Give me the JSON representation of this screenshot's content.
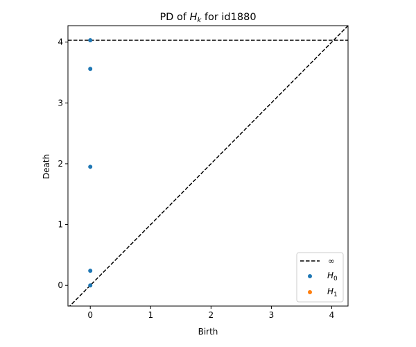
{
  "chart_data": {
    "type": "scatter",
    "title_prefix": "PD of ",
    "title_var": "H",
    "title_sub": "k",
    "title_suffix": " for id1880",
    "xlabel": "Birth",
    "ylabel": "Death",
    "xlim": [
      -0.37,
      4.27
    ],
    "ylim": [
      -0.34,
      4.27
    ],
    "xticks": [
      0,
      1,
      2,
      3,
      4
    ],
    "yticks": [
      0,
      1,
      2,
      3,
      4
    ],
    "grid": false,
    "legend_position": "lower-right",
    "infinity_level": 4.03,
    "diagonal": true,
    "legend": [
      {
        "label": "∞",
        "kind": "dashed-line",
        "color": "#000000"
      },
      {
        "label": "H",
        "sub": "0",
        "kind": "marker",
        "color": "#1f77b4"
      },
      {
        "label": "H",
        "sub": "1",
        "kind": "marker",
        "color": "#ff7f0e"
      }
    ],
    "series": [
      {
        "name": "H0",
        "color": "#1f77b4",
        "points": [
          {
            "x": 0,
            "y": 0.0
          },
          {
            "x": 0,
            "y": 0.24
          },
          {
            "x": 0,
            "y": 1.95
          },
          {
            "x": 0,
            "y": 3.56
          },
          {
            "x": 0,
            "y": 4.03
          }
        ]
      },
      {
        "name": "H1",
        "color": "#ff7f0e",
        "points": []
      }
    ]
  }
}
